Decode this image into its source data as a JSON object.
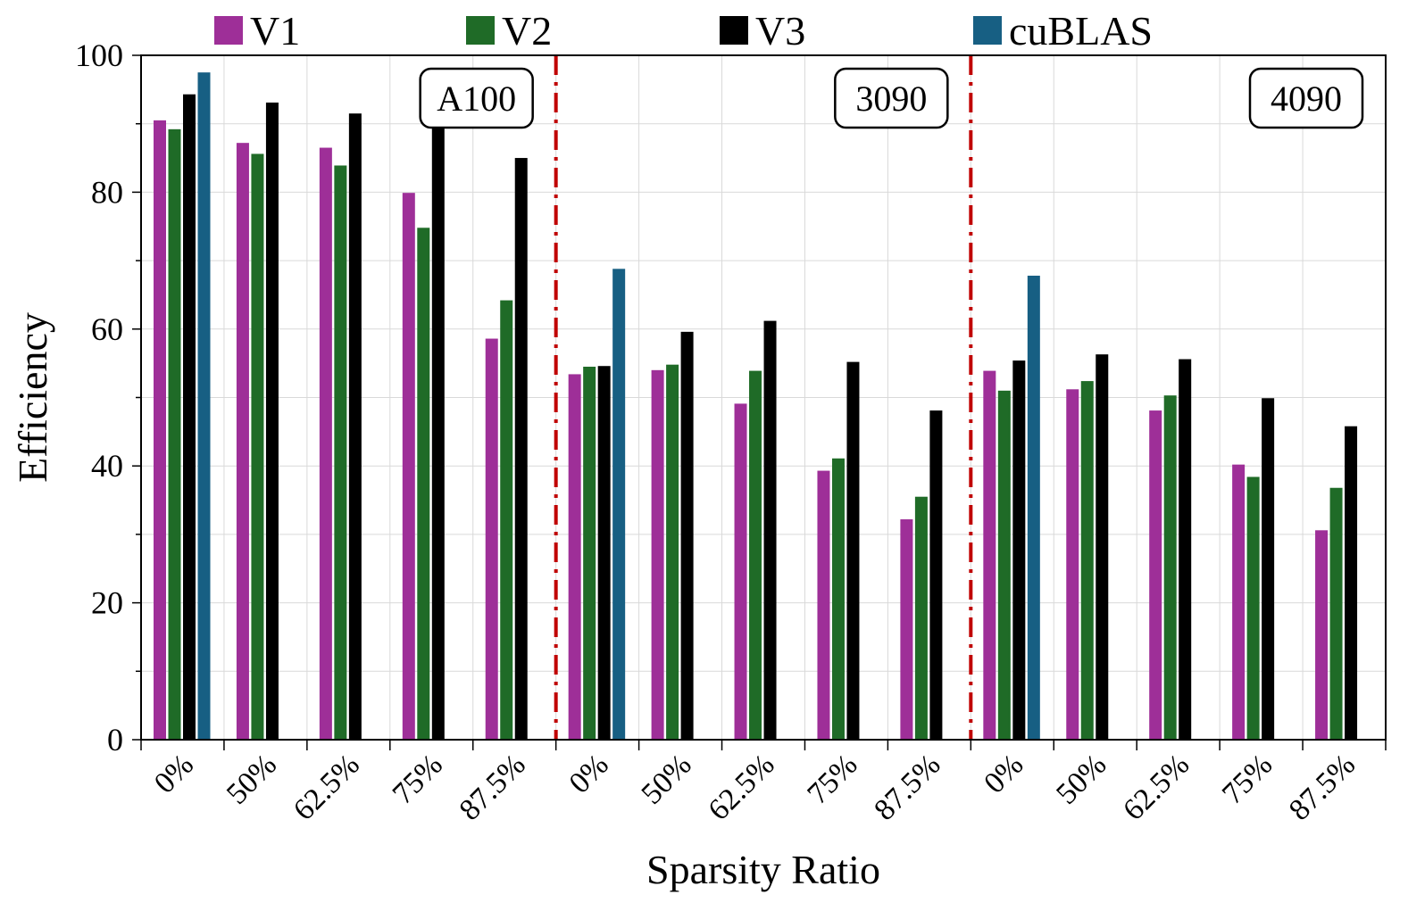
{
  "chart_data": {
    "type": "bar",
    "title": "",
    "xlabel": "Sparsity Ratio",
    "ylabel": "Efficiency",
    "ylim": [
      0,
      100
    ],
    "yticks": [
      0,
      20,
      40,
      60,
      80,
      100
    ],
    "grid": true,
    "legend_position": "top",
    "groups": [
      "A100",
      "3090",
      "4090"
    ],
    "categories": [
      "0%",
      "50%",
      "62.5%",
      "75%",
      "87.5%"
    ],
    "series": [
      {
        "name": "V1",
        "color": "#9e2f98",
        "values": [
          [
            90.5,
            87.2,
            86.5,
            79.9,
            58.6
          ],
          [
            53.4,
            54.0,
            49.1,
            39.3,
            32.2
          ],
          [
            53.9,
            51.2,
            48.1,
            40.2,
            30.6
          ]
        ]
      },
      {
        "name": "V2",
        "color": "#1f6b27",
        "values": [
          [
            89.2,
            85.6,
            83.9,
            74.8,
            64.2
          ],
          [
            54.5,
            54.8,
            53.9,
            41.1,
            35.5
          ],
          [
            51.0,
            52.4,
            50.3,
            38.4,
            36.8
          ]
        ]
      },
      {
        "name": "V3",
        "color": "#000000",
        "values": [
          [
            94.3,
            93.1,
            91.5,
            89.9,
            85.0
          ],
          [
            54.6,
            59.6,
            61.2,
            55.2,
            48.1
          ],
          [
            55.4,
            56.3,
            55.6,
            49.9,
            45.8
          ]
        ]
      },
      {
        "name": "cuBLAS",
        "color": "#175f83",
        "values": [
          [
            97.5,
            null,
            null,
            null,
            null
          ],
          [
            68.8,
            null,
            null,
            null,
            null
          ],
          [
            67.8,
            null,
            null,
            null,
            null
          ]
        ]
      }
    ]
  }
}
